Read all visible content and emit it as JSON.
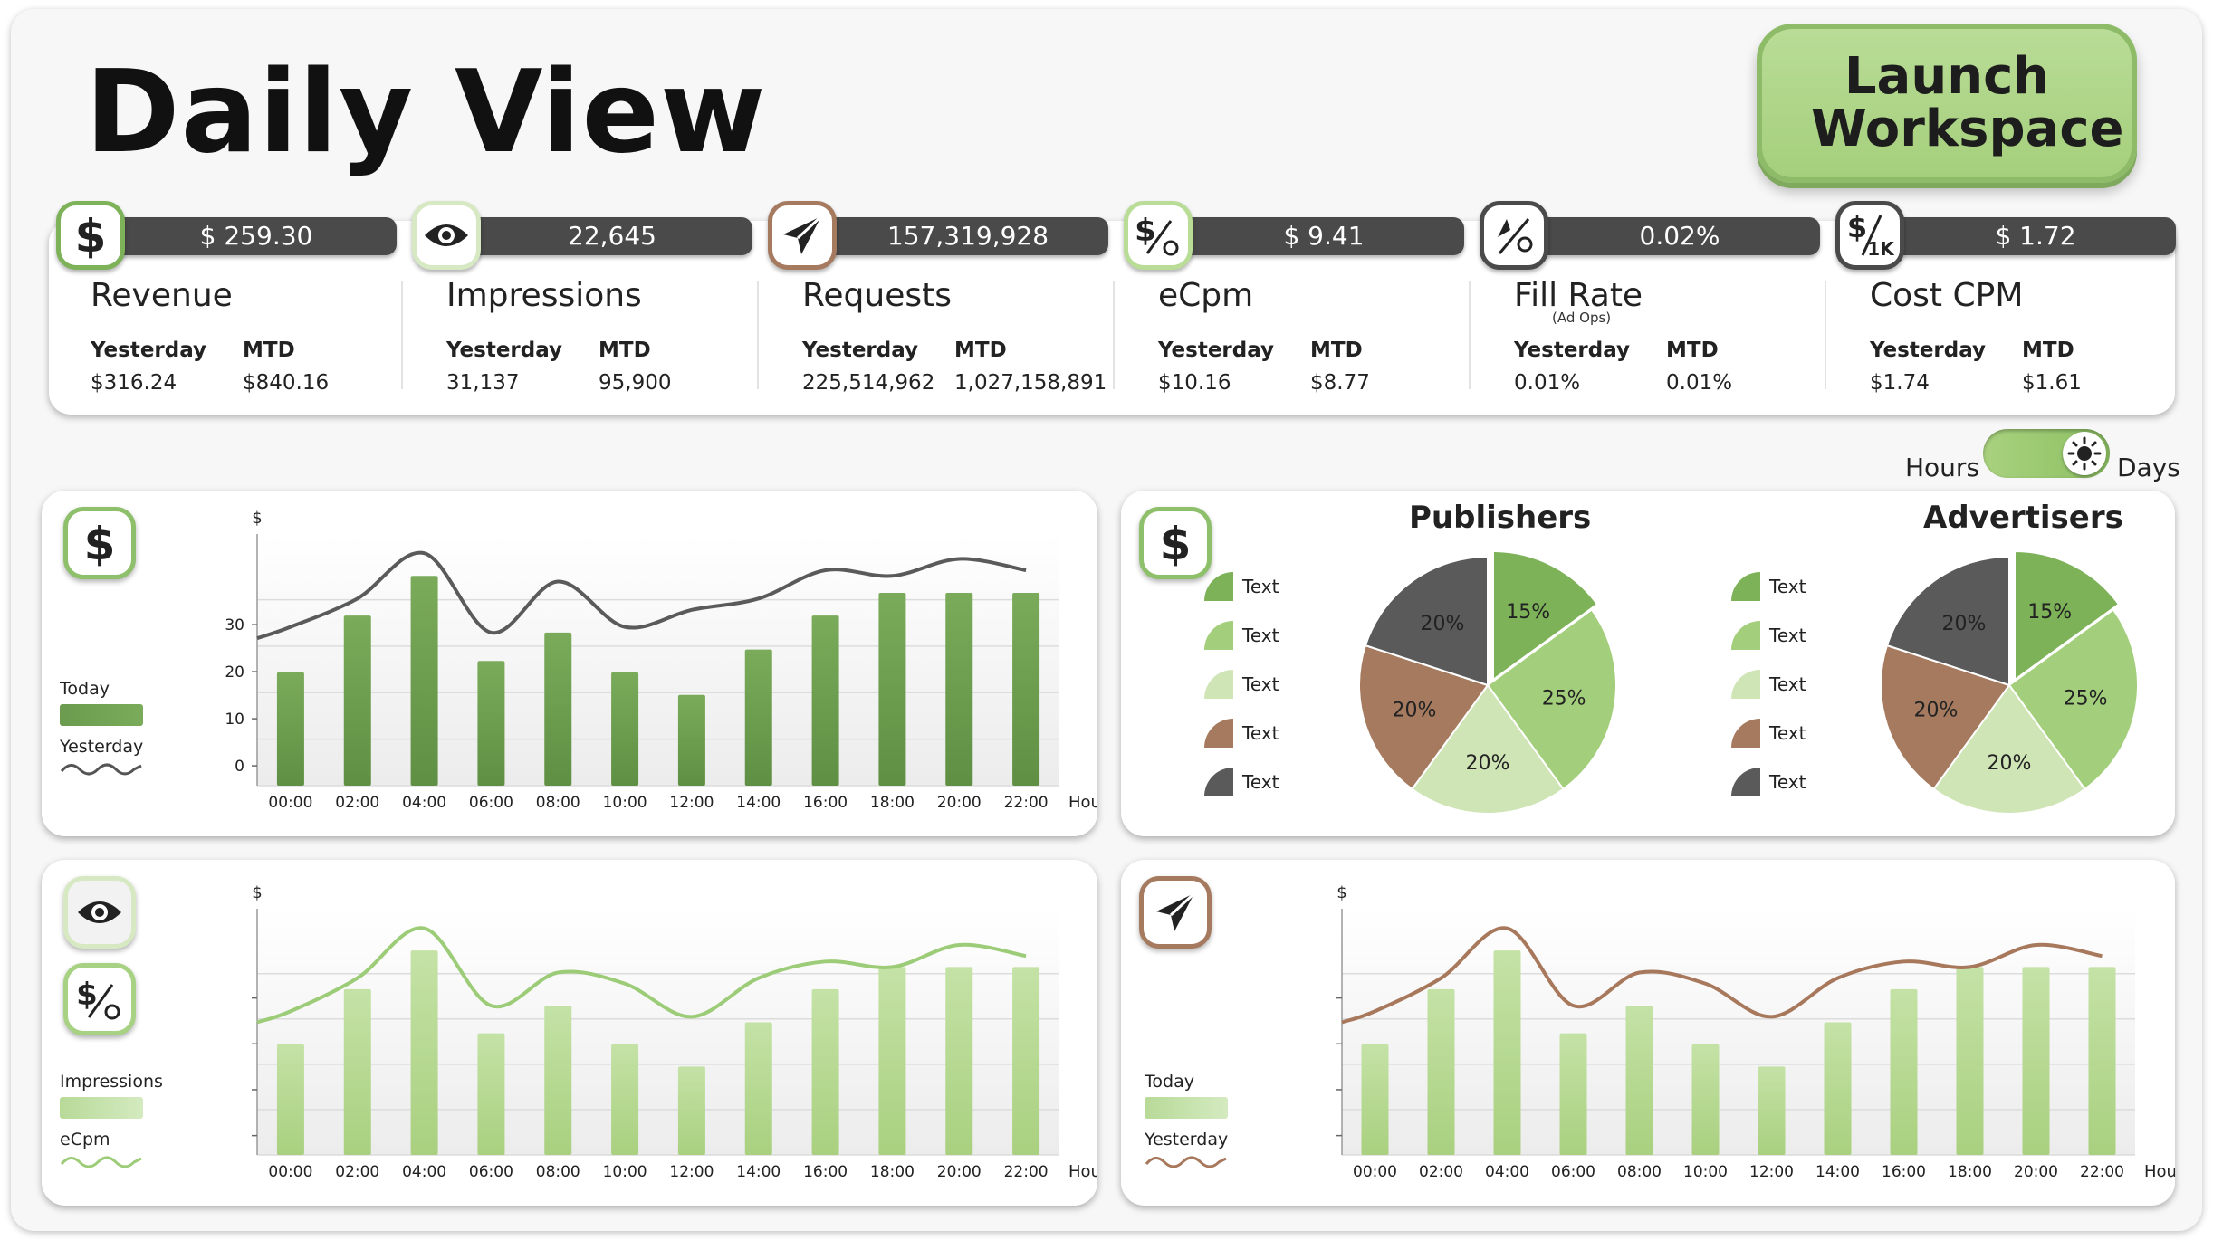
{
  "title": "Daily View",
  "launch_button": "Launch Workspace",
  "colors": {
    "dark_green": "#6b9b4e",
    "mid_green": "#9fcb78",
    "light_green": "#cfe5b6",
    "brown": "#a57a5f",
    "dark_gray": "#555555",
    "line_dark": "#5a5a5a",
    "line_green": "#9ccc78",
    "line_brown": "#a7785c"
  },
  "kpis": [
    {
      "icon": "dollar-icon",
      "value": "$ 259.30",
      "name": "Revenue",
      "sub": "",
      "h1": "Yesterday",
      "h2": "MTD",
      "v1": "$316.24",
      "v2": "$840.16"
    },
    {
      "icon": "eye-icon",
      "value": "22,645",
      "name": "Impressions",
      "sub": "",
      "h1": "Yesterday",
      "h2": "MTD",
      "v1": "31,137",
      "v2": "95,900"
    },
    {
      "icon": "paper-plane-icon",
      "value": "157,319,928",
      "name": "Requests",
      "sub": "",
      "h1": "Yesterday",
      "h2": "MTD",
      "v1": "225,514,962",
      "v2": "1,027,158,891"
    },
    {
      "icon": "dollar-percent-icon",
      "value": "$ 9.41",
      "name": "eCpm",
      "sub": "",
      "h1": "Yesterday",
      "h2": "MTD",
      "v1": "$10.16",
      "v2": "$8.77"
    },
    {
      "icon": "fill-rate-icon",
      "value": "0.02%",
      "name": "Fill Rate",
      "sub": "(Ad Ops)",
      "h1": "Yesterday",
      "h2": "MTD",
      "v1": "0.01%",
      "v2": "0.01%"
    },
    {
      "icon": "dollar-per-1k-icon",
      "value": "$ 1.72",
      "name": "Cost CPM",
      "sub": "",
      "h1": "Yesterday",
      "h2": "MTD",
      "v1": "$1.74",
      "v2": "$1.61"
    }
  ],
  "toggle": {
    "left": "Hours",
    "right": "Days",
    "selected": "Days"
  },
  "chart_data": [
    {
      "type": "bar",
      "id": "revenue",
      "ylabel": "$",
      "xlabel": "Hours",
      "ytick_labels": [
        "0",
        "10",
        "20",
        "30"
      ],
      "ylim": [
        0,
        38
      ],
      "categories": [
        "00:00",
        "02:00",
        "04:00",
        "06:00",
        "08:00",
        "10:00",
        "12:00",
        "14:00",
        "16:00",
        "18:00",
        "20:00",
        "22:00"
      ],
      "series": [
        {
          "name": "Today",
          "values": [
            20,
            30,
            37,
            22,
            27,
            20,
            16,
            24,
            30,
            34,
            34,
            34
          ]
        },
        {
          "name": "Yesterday",
          "x": [
            0,
            1,
            2,
            3,
            4,
            5,
            6,
            7,
            8,
            9,
            10,
            11
          ],
          "line": [
            28,
            33,
            41,
            27,
            36,
            28,
            31,
            33,
            38,
            37,
            40,
            38
          ]
        }
      ]
    },
    {
      "type": "bar",
      "id": "impressions",
      "ylabel": "$",
      "xlabel": "Hours",
      "ylim": [
        0,
        38
      ],
      "categories": [
        "00:00",
        "02:00",
        "04:00",
        "06:00",
        "08:00",
        "10:00",
        "12:00",
        "14:00",
        "16:00",
        "18:00",
        "20:00",
        "22:00"
      ],
      "series": [
        {
          "name": "Impressions",
          "values": [
            20,
            30,
            37,
            22,
            27,
            20,
            16,
            24,
            30,
            34,
            34,
            34
          ]
        },
        {
          "name": "eCpm",
          "line": [
            26,
            32,
            41,
            27,
            33,
            31,
            25,
            32,
            35,
            34,
            38,
            36
          ]
        }
      ]
    },
    {
      "type": "bar",
      "id": "requests",
      "ylabel": "$",
      "xlabel": "Hours",
      "ylim": [
        0,
        38
      ],
      "categories": [
        "00:00",
        "02:00",
        "04:00",
        "06:00",
        "08:00",
        "10:00",
        "12:00",
        "14:00",
        "16:00",
        "18:00",
        "20:00",
        "22:00"
      ],
      "series": [
        {
          "name": "Today",
          "values": [
            20,
            30,
            37,
            22,
            27,
            20,
            16,
            24,
            30,
            34,
            34,
            34
          ]
        },
        {
          "name": "Yesterday",
          "line": [
            26,
            32,
            41,
            27,
            33,
            31,
            25,
            32,
            35,
            34,
            38,
            36
          ]
        }
      ]
    },
    {
      "type": "pie",
      "id": "publishers",
      "title": "Publishers",
      "labels": [
        "Text",
        "Text",
        "Text",
        "Text",
        "Text"
      ],
      "values": [
        15,
        25,
        20,
        20,
        20
      ],
      "value_labels": [
        "15%",
        "25%",
        "20%",
        "20%",
        "20%"
      ]
    },
    {
      "type": "pie",
      "id": "advertisers",
      "title": "Advertisers",
      "labels": [
        "Text",
        "Text",
        "Text",
        "Text",
        "Text"
      ],
      "values": [
        15,
        25,
        20,
        20,
        20
      ],
      "value_labels": [
        "15%",
        "25%",
        "20%",
        "20%",
        "20%"
      ]
    }
  ]
}
